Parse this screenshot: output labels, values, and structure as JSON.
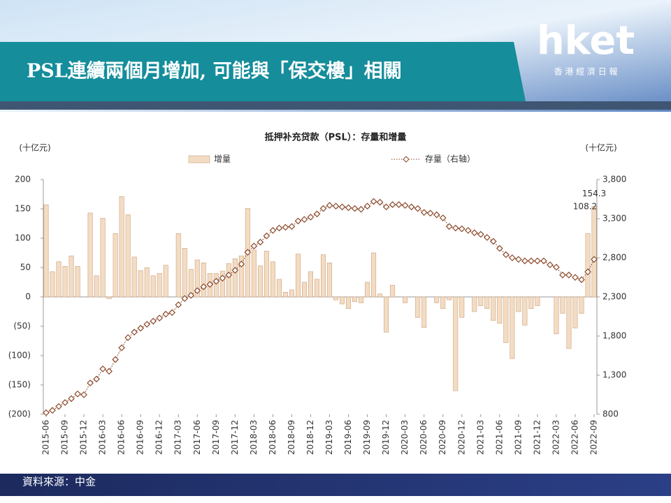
{
  "header": {
    "title": "PSL連續兩個月增加, 可能與「保交樓」相關",
    "logo": "hket",
    "logo_subtitle": "香 港 經 濟 日 報"
  },
  "chart_data": {
    "type": "combo",
    "title": "抵押补充贷款（PSL）：存量和增量",
    "y_unit": "(十亿元)",
    "y2_unit": "(十亿元)",
    "categories": [
      "2015-06",
      null,
      null,
      "2015-09",
      null,
      null,
      "2015-12",
      null,
      null,
      "2016-03",
      null,
      null,
      "2016-06",
      null,
      null,
      "2016-09",
      null,
      null,
      "2016-12",
      null,
      null,
      "2017-03",
      null,
      null,
      "2017-06",
      null,
      null,
      "2017-09",
      null,
      null,
      "2017-12",
      null,
      null,
      "2018-03",
      null,
      null,
      "2018-06",
      null,
      null,
      "2018-09",
      null,
      null,
      "2018-12",
      null,
      null,
      "2019-03",
      null,
      null,
      "2019-06",
      null,
      null,
      "2019-09",
      null,
      null,
      "2019-12",
      null,
      null,
      "2020-03",
      null,
      null,
      "2020-06",
      null,
      null,
      "2020-09",
      null,
      null,
      "2020-12",
      null,
      null,
      "2021-03",
      null,
      null,
      "2021-06",
      null,
      null,
      "2021-09",
      null,
      null,
      "2021-12",
      null,
      null,
      "2022-03",
      null,
      null,
      "2022-06",
      null,
      null,
      "2022-09"
    ],
    "series": [
      {
        "name": "增量",
        "type": "bar",
        "color": "#f3dcc3",
        "values": [
          157,
          43,
          60,
          52,
          70,
          52,
          0,
          143,
          36,
          134,
          -3,
          108,
          171,
          140,
          68,
          45,
          50,
          36,
          40,
          54,
          0,
          108,
          83,
          47,
          63,
          58,
          40,
          40,
          44,
          57,
          65,
          70,
          151,
          80,
          53,
          78,
          60,
          30,
          8,
          12,
          73,
          25,
          43,
          30,
          72,
          58,
          -5,
          -12,
          -20,
          -8,
          -10,
          25,
          75,
          5,
          -60,
          20,
          0,
          -10,
          0,
          -35,
          -52,
          0,
          -10,
          -20,
          -5,
          -160,
          -35,
          0,
          -25,
          -15,
          -20,
          -40,
          -45,
          -78,
          -105,
          -25,
          -48,
          -20,
          -15,
          0,
          0,
          -63,
          -28,
          -88,
          -53,
          -28,
          108.2,
          154.3
        ]
      },
      {
        "name": "存量（右轴）",
        "type": "line",
        "axis": "y2",
        "color": "#8b4a2b",
        "values": [
          820,
          850,
          900,
          950,
          1000,
          1060,
          1050,
          1200,
          1250,
          1380,
          1350,
          1500,
          1650,
          1780,
          1850,
          1900,
          1950,
          1990,
          2030,
          2080,
          2100,
          2200,
          2280,
          2320,
          2380,
          2430,
          2460,
          2500,
          2540,
          2580,
          2640,
          2720,
          2870,
          2950,
          3000,
          3080,
          3150,
          3180,
          3190,
          3200,
          3270,
          3290,
          3320,
          3360,
          3430,
          3470,
          3460,
          3450,
          3440,
          3430,
          3420,
          3460,
          3520,
          3510,
          3450,
          3480,
          3480,
          3470,
          3450,
          3430,
          3380,
          3370,
          3350,
          3310,
          3200,
          3180,
          3170,
          3150,
          3120,
          3100,
          3060,
          3010,
          2920,
          2840,
          2800,
          2780,
          2760,
          2760,
          2760,
          2760,
          2710,
          2680,
          2580,
          2580,
          2550,
          2520,
          2620,
          2780
        ]
      }
    ],
    "labeled_points": [
      86,
      87
    ],
    "ylim": [
      -200,
      200
    ],
    "yticks": [
      200,
      150,
      100,
      50,
      0,
      {
        "value": -50,
        "label": "(50)"
      },
      {
        "value": -100,
        "label": "(100)"
      },
      {
        "value": -150,
        "label": "(150)"
      },
      {
        "value": -200,
        "label": "(200)"
      }
    ],
    "y2lim": [
      800,
      3800
    ],
    "y2ticks": [
      {
        "value": 800,
        "label": "800"
      },
      {
        "value": 1300,
        "label": "1,300"
      },
      {
        "value": 1800,
        "label": "1,800"
      },
      {
        "value": 2300,
        "label": "2,300"
      },
      {
        "value": 2800,
        "label": "2,800"
      },
      {
        "value": 3300,
        "label": "3,300"
      },
      {
        "value": 3800,
        "label": "3,800"
      }
    ],
    "negative_tick_color": "#e0301e"
  },
  "footer": {
    "source": "資料來源：中金"
  }
}
